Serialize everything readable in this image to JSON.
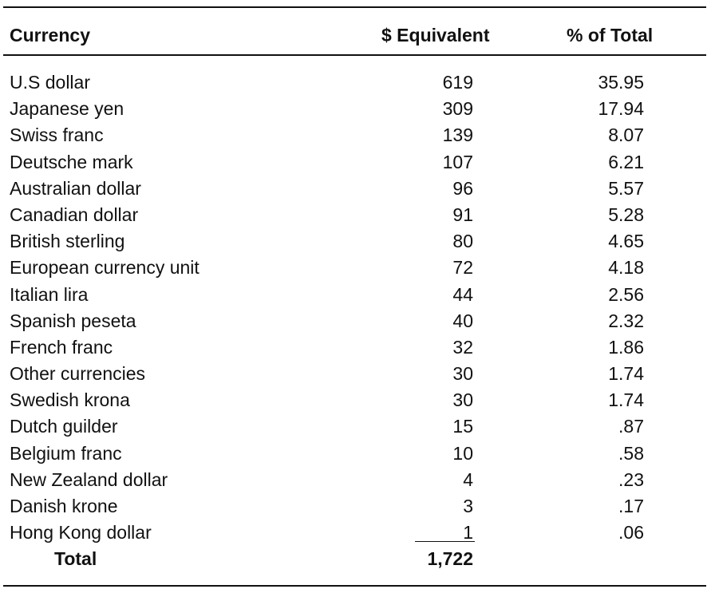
{
  "table": {
    "headers": {
      "currency": "Currency",
      "equivalent": "$ Equivalent",
      "percent": "% of Total"
    },
    "rows": [
      {
        "currency": "U.S dollar",
        "equivalent": "619",
        "percent": "35.95"
      },
      {
        "currency": "Japanese yen",
        "equivalent": "309",
        "percent": "17.94"
      },
      {
        "currency": "Swiss franc",
        "equivalent": "139",
        "percent": "8.07"
      },
      {
        "currency": "Deutsche mark",
        "equivalent": "107",
        "percent": "6.21"
      },
      {
        "currency": "Australian dollar",
        "equivalent": "96",
        "percent": "5.57"
      },
      {
        "currency": "Canadian dollar",
        "equivalent": "91",
        "percent": "5.28"
      },
      {
        "currency": "British sterling",
        "equivalent": "80",
        "percent": "4.65"
      },
      {
        "currency": "European currency unit",
        "equivalent": "72",
        "percent": "4.18"
      },
      {
        "currency": "Italian lira",
        "equivalent": "44",
        "percent": "2.56"
      },
      {
        "currency": "Spanish peseta",
        "equivalent": "40",
        "percent": "2.32"
      },
      {
        "currency": "French franc",
        "equivalent": "32",
        "percent": "1.86"
      },
      {
        "currency": "Other currencies",
        "equivalent": "30",
        "percent": "1.74"
      },
      {
        "currency": "Swedish krona",
        "equivalent": "30",
        "percent": "1.74"
      },
      {
        "currency": "Dutch guilder",
        "equivalent": "15",
        "percent": ".87"
      },
      {
        "currency": "Belgium franc",
        "equivalent": "10",
        "percent": ".58"
      },
      {
        "currency": "New Zealand dollar",
        "equivalent": "4",
        "percent": ".23"
      },
      {
        "currency": "Danish krone",
        "equivalent": "3",
        "percent": ".17"
      },
      {
        "currency": "Hong Kong dollar",
        "equivalent": "1",
        "percent": ".06"
      }
    ],
    "total": {
      "label": "Total",
      "equivalent": "1,722"
    }
  }
}
